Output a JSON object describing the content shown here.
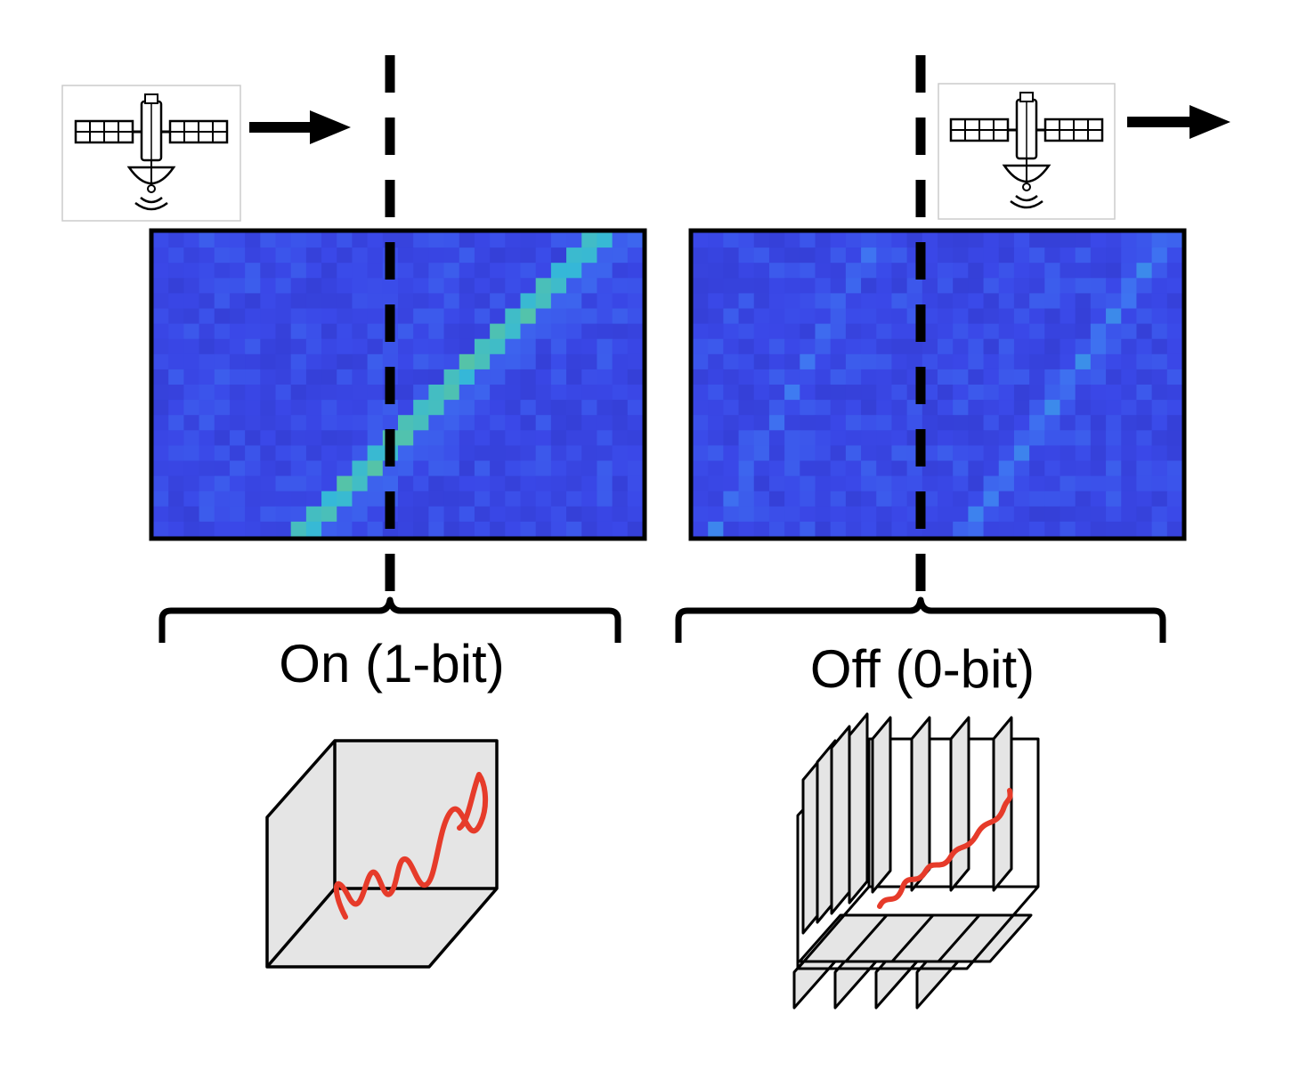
{
  "panels": [
    {
      "id": "on",
      "label": "On (1-bit)",
      "signal_strength": 1.0,
      "icons": [
        "satellite-icon"
      ]
    },
    {
      "id": "off",
      "label": "Off (0-bit)",
      "signal_strength": 0.2,
      "icons": [
        "satellite-icon"
      ]
    }
  ],
  "colors": {
    "background_blue": "#3a46e6",
    "grid_dark": "#2f3acc",
    "track_bright": "#f0ea38",
    "track_mid": "#7fd26a",
    "track_faint": "#3f78f2",
    "arrow": "#000000",
    "divider": "#000000",
    "cube_fill": "#e5e5e5",
    "wave": "#e63b2a"
  },
  "icons": {
    "satellite": "satellite-icon",
    "arrow": "arrow-right-icon",
    "cube": "cube-icon",
    "slices": "sliced-volume-icon"
  }
}
